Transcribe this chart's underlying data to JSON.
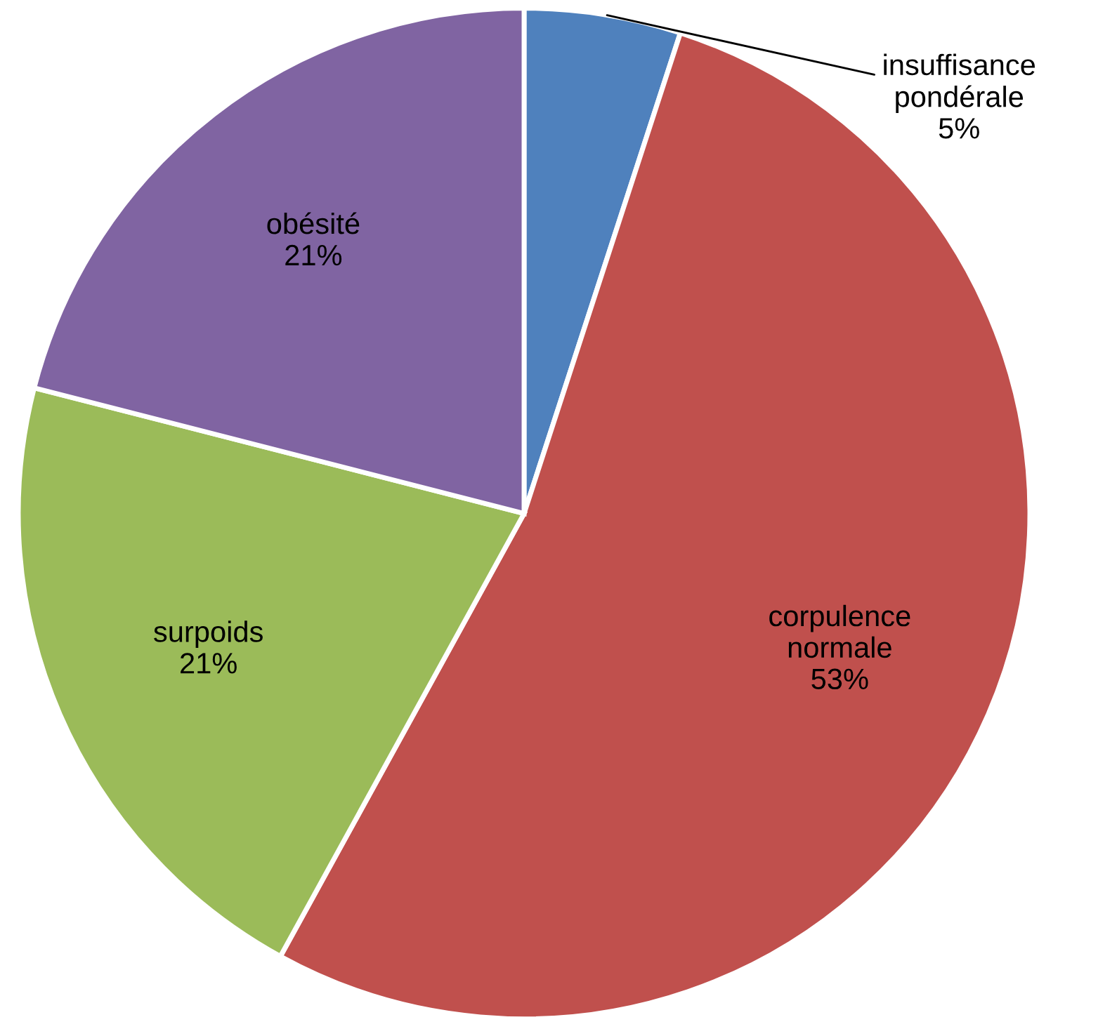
{
  "chart_data": {
    "type": "pie",
    "categories": [
      "insuffisance pondérale",
      "corpulence normale",
      "surpoids",
      "obésité"
    ],
    "values": [
      5,
      53,
      21,
      21
    ],
    "colors": [
      "#4f81bd",
      "#c0504d",
      "#9bbb59",
      "#8064a2"
    ],
    "value_labels": [
      "5%",
      "53%",
      "21%",
      "21%"
    ],
    "legend": false
  }
}
